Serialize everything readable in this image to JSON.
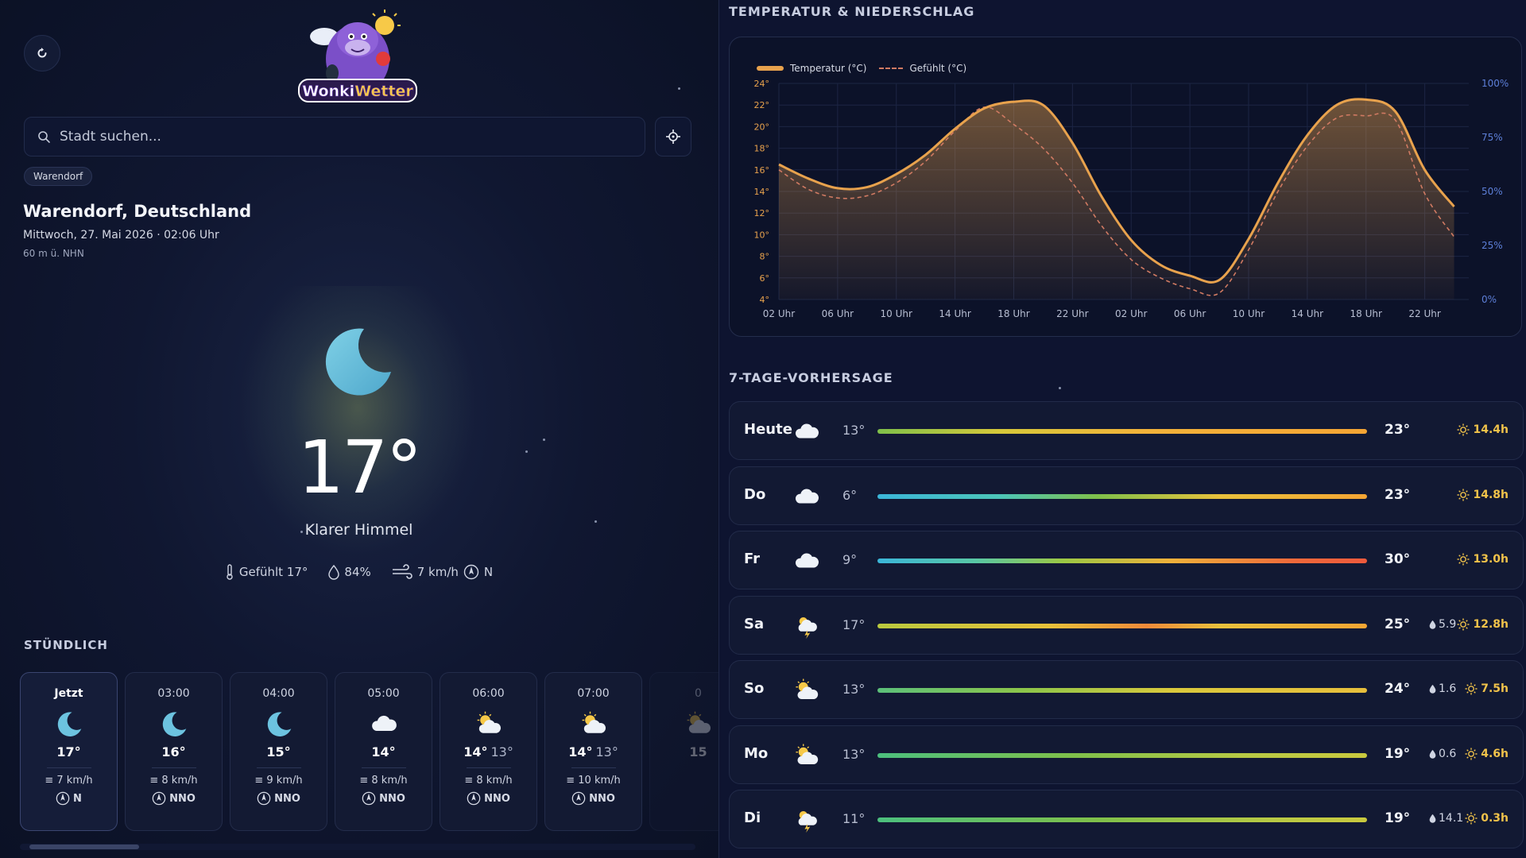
{
  "app": {
    "logo_text": "WonkiWetter",
    "search_placeholder": "Stadt suchen...",
    "recent_chip": "Warendorf"
  },
  "location": {
    "city": "Warendorf, Deutschland",
    "datetime": "Mittwoch, 27. Mai 2026 · 02:06 Uhr",
    "altitude": "60 m ü. NHN"
  },
  "current": {
    "temp": "17°",
    "condition": "Klarer Himmel",
    "feels_like": "Gefühlt 17°",
    "humidity": "84%",
    "wind": "7 km/h",
    "wind_dir": "N"
  },
  "hourly": {
    "label": "STÜNDLICH",
    "items": [
      {
        "time": "Jetzt",
        "icon": "moon-icon",
        "temp": "17°",
        "feel": "",
        "wind": "7 km/h",
        "dir": "N"
      },
      {
        "time": "03:00",
        "icon": "moon-icon",
        "temp": "16°",
        "feel": "",
        "wind": "8 km/h",
        "dir": "NNO"
      },
      {
        "time": "04:00",
        "icon": "moon-icon",
        "temp": "15°",
        "feel": "",
        "wind": "9 km/h",
        "dir": "NNO"
      },
      {
        "time": "05:00",
        "icon": "cloud-icon",
        "temp": "14°",
        "feel": "",
        "wind": "8 km/h",
        "dir": "NNO"
      },
      {
        "time": "06:00",
        "icon": "partly-cloudy-icon",
        "temp": "14°",
        "feel": "13°",
        "wind": "8 km/h",
        "dir": "NNO"
      },
      {
        "time": "07:00",
        "icon": "partly-cloudy-icon",
        "temp": "14°",
        "feel": "13°",
        "wind": "10 km/h",
        "dir": "NNO"
      },
      {
        "time": "0",
        "icon": "partly-cloudy-icon",
        "temp": "15",
        "feel": "",
        "wind": "",
        "dir": ""
      }
    ]
  },
  "chart_section": {
    "title": "TEMPERATUR & NIEDERSCHLAG"
  },
  "chart_data": {
    "type": "line",
    "series": [
      {
        "name": "Temperatur (°C)",
        "color": "#e8a24d",
        "x": [
          2,
          4,
          6,
          8,
          10,
          12,
          14,
          16,
          18,
          20,
          22,
          24,
          26,
          28,
          30,
          32,
          34,
          36,
          38,
          40,
          42,
          44,
          46,
          48
        ],
        "values": [
          16.5,
          15.2,
          14.3,
          14.4,
          15.6,
          17.4,
          19.8,
          21.7,
          22.3,
          22.0,
          18.5,
          13.5,
          9.5,
          7.2,
          6.2,
          5.8,
          9.6,
          14.8,
          19.2,
          22.0,
          22.5,
          21.4,
          16.0,
          12.6
        ]
      },
      {
        "name": "Gefühlt (°C)",
        "color": "#d07a62",
        "x": [
          2,
          4,
          6,
          8,
          10,
          12,
          14,
          16,
          18,
          20,
          22,
          24,
          26,
          28,
          30,
          32,
          34,
          36,
          38,
          40,
          42,
          44,
          46,
          48
        ],
        "values": [
          16.0,
          14.2,
          13.4,
          13.6,
          14.8,
          16.8,
          19.6,
          21.8,
          20.2,
          18.0,
          14.8,
          10.8,
          7.7,
          6.0,
          5.0,
          4.6,
          8.6,
          14.0,
          18.2,
          20.8,
          21.0,
          20.6,
          13.8,
          9.8
        ]
      }
    ],
    "x_ticks": [
      "02 Uhr",
      "06 Uhr",
      "10 Uhr",
      "14 Uhr",
      "18 Uhr",
      "22 Uhr",
      "02 Uhr",
      "06 Uhr",
      "10 Uhr",
      "14 Uhr",
      "18 Uhr",
      "22 Uhr"
    ],
    "y_ticks_left": [
      "24°",
      "22°",
      "20°",
      "18°",
      "16°",
      "14°",
      "12°",
      "10°",
      "8°",
      "6°",
      "4°"
    ],
    "y_ticks_right": [
      "100%",
      "75%",
      "50%",
      "25%",
      "0%"
    ],
    "ylim": [
      4,
      24
    ],
    "grid": true,
    "legend": "top-left"
  },
  "forecast": {
    "title": "7-TAGE-VORHERSAGE",
    "days": [
      {
        "name": "Heute",
        "icon": "cloud-icon",
        "lo": "13°",
        "hi": "23°",
        "rain": "",
        "sun": "14.4h",
        "bar": "linear-gradient(90deg,#7fc04a 0%,#d6c83a 25%,#f2b23a 55%,#f5a534 100%)"
      },
      {
        "name": "Do",
        "icon": "cloud-icon",
        "lo": "6°",
        "hi": "23°",
        "rain": "",
        "sun": "14.8h",
        "bar": "linear-gradient(90deg,#3bb6d9 0%,#4cc5b8 25%,#7fc04a 45%,#e8c13c 70%,#f5a534 100%)"
      },
      {
        "name": "Fr",
        "icon": "cloud-icon",
        "lo": "9°",
        "hi": "30°",
        "rain": "",
        "sun": "13.0h",
        "bar": "linear-gradient(90deg,#3bb6d9 0%,#58c7a5 20%,#9cc844 38%,#f0b13a 60%,#f0693a 85%,#ef5a3c 100%)"
      },
      {
        "name": "Sa",
        "icon": "thunder-icon",
        "lo": "17°",
        "hi": "25°",
        "rain": "5.9",
        "sun": "12.8h",
        "bar": "linear-gradient(90deg,#b9c93e 0%,#e7c13a 35%,#f08a3a 55%,#e8c13c 70%,#f5a534 100%)"
      },
      {
        "name": "So",
        "icon": "partly-cloudy-icon",
        "lo": "13°",
        "hi": "24°",
        "rain": "1.6",
        "sun": "7.5h",
        "bar": "linear-gradient(90deg,#5cc07a 0%,#8cc54a 30%,#d9c83c 60%,#e7bf3c 100%)"
      },
      {
        "name": "Mo",
        "icon": "partly-cloudy-icon",
        "lo": "13°",
        "hi": "19°",
        "rain": "0.6",
        "sun": "4.6h",
        "bar": "linear-gradient(90deg,#4cc07e 0%,#7fc04a 40%,#b7c944 75%,#c9c93e 100%)"
      },
      {
        "name": "Di",
        "icon": "thunder-icon",
        "lo": "11°",
        "hi": "19°",
        "rain": "14.1",
        "sun": "0.3h",
        "bar": "linear-gradient(90deg,#4cc07e 0%,#7fc04a 45%,#b7c944 80%,#c9c93e 100%)"
      }
    ]
  }
}
